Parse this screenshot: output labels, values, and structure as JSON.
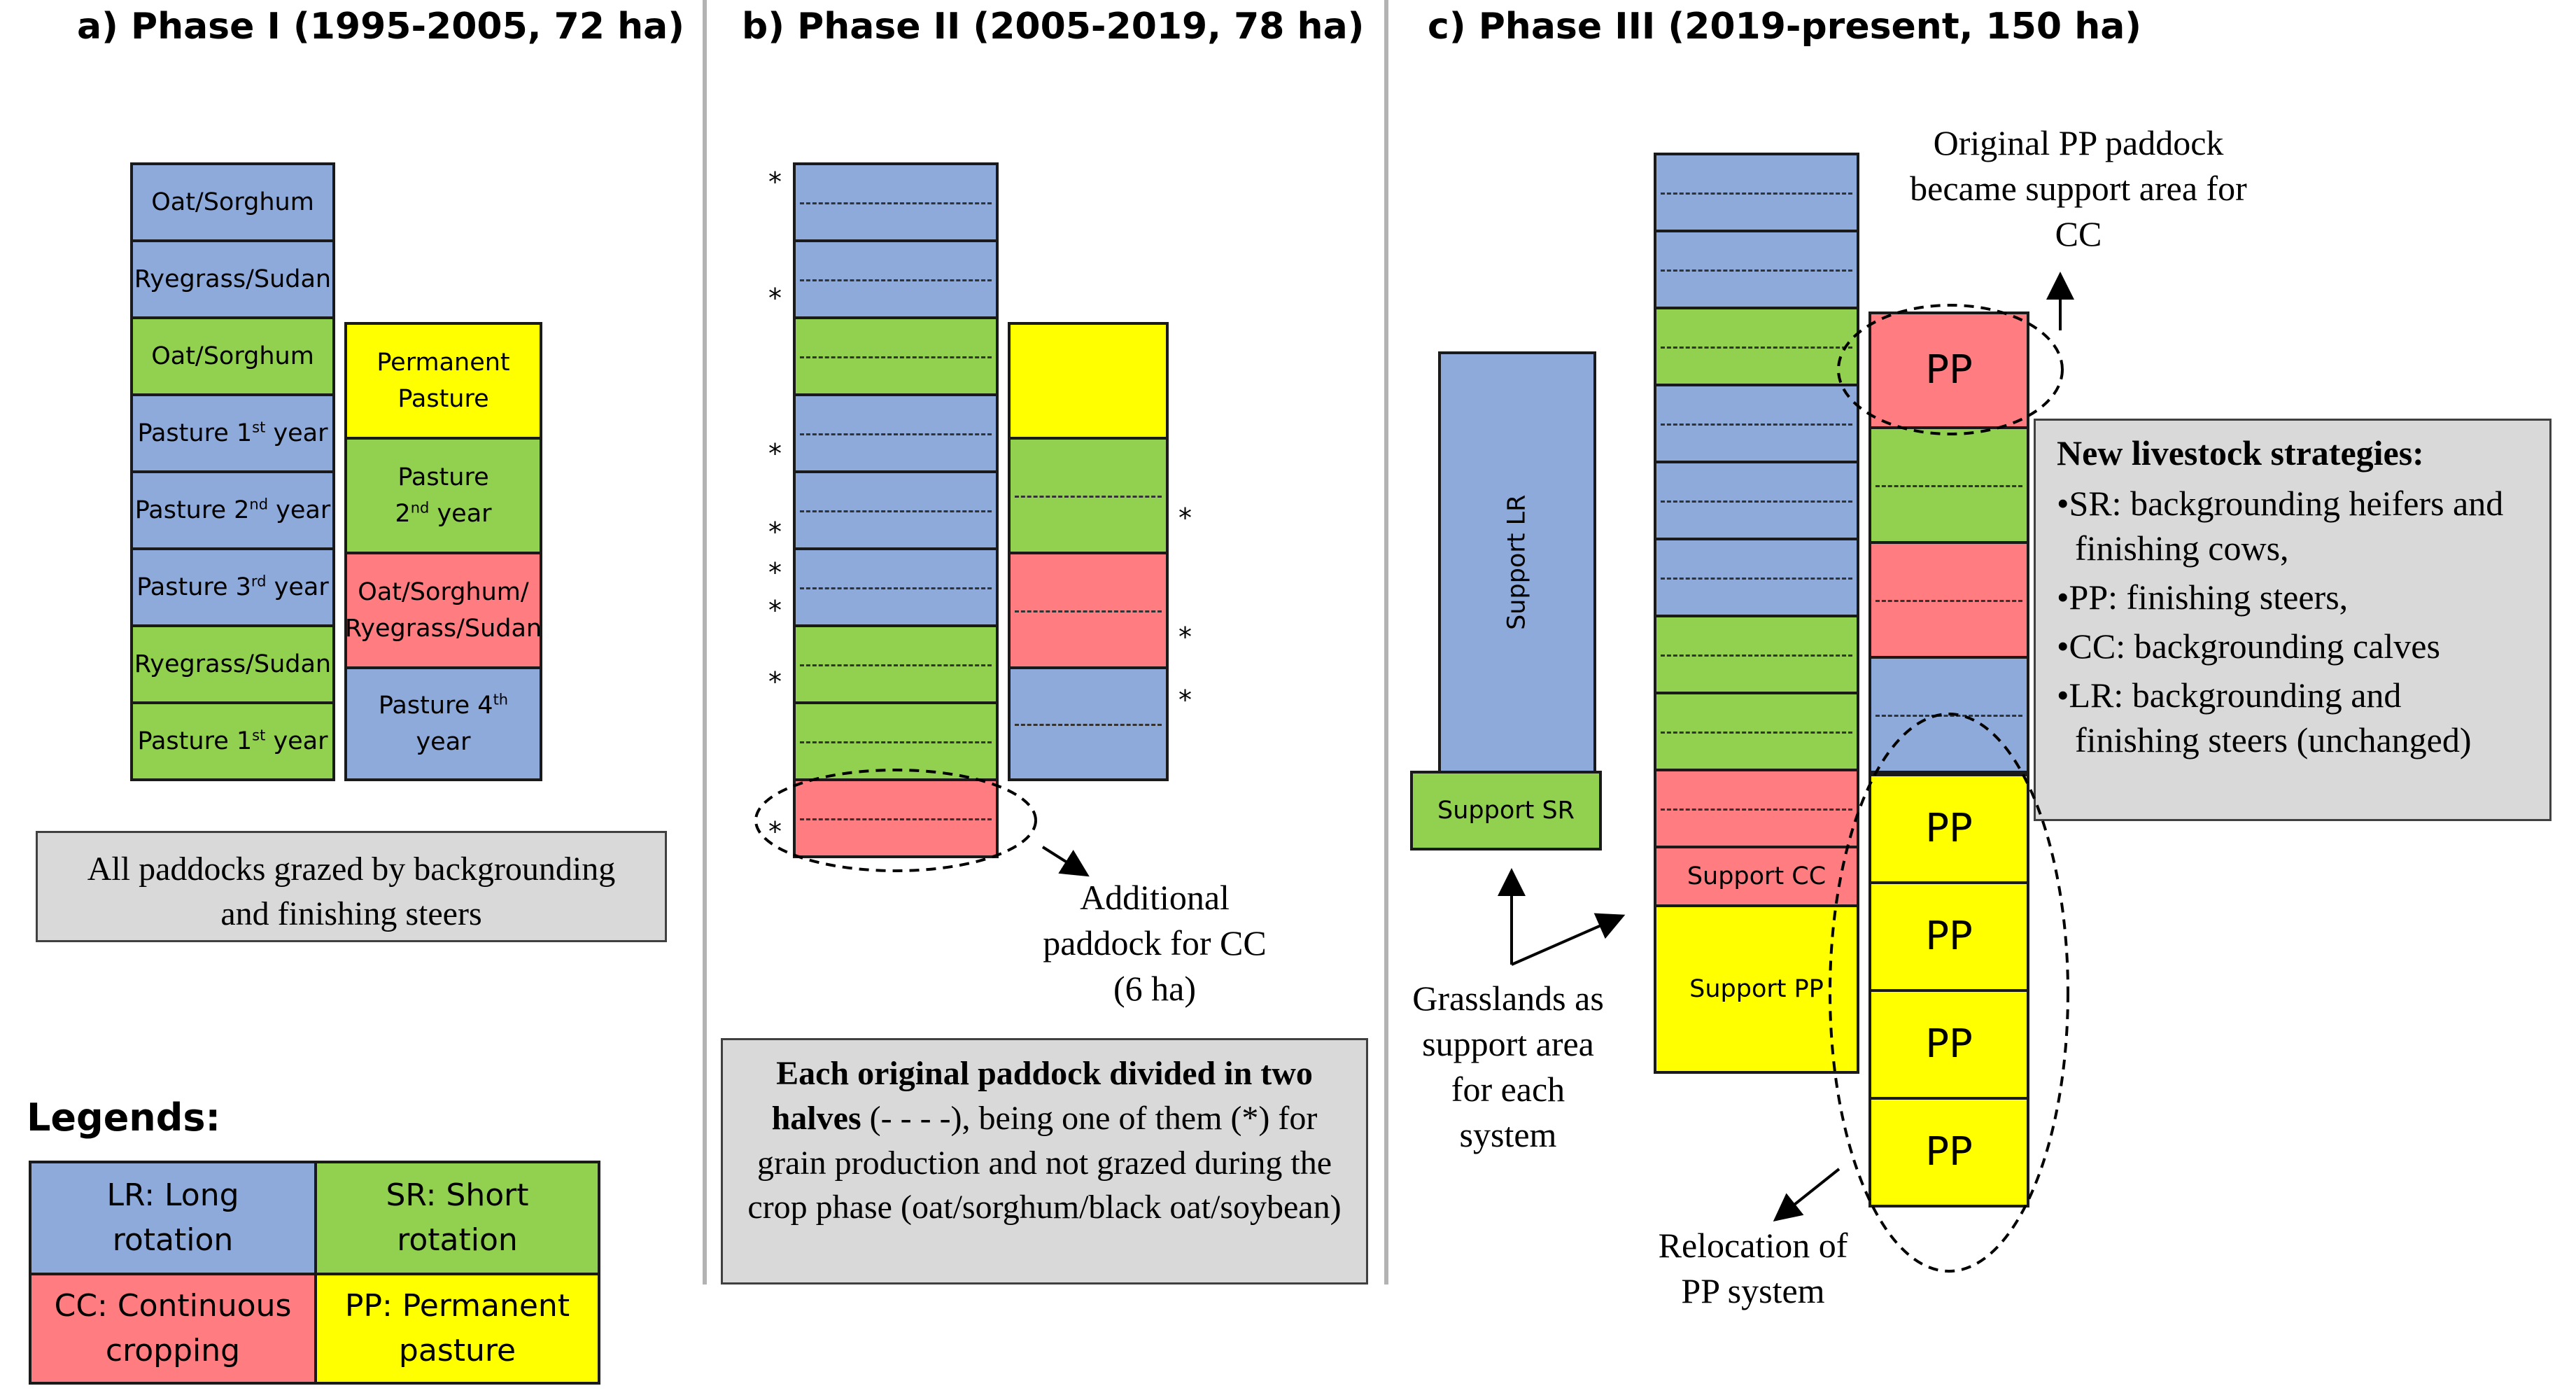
{
  "phase1": {
    "title": "a) Phase I (1995-2005, 72 ha)",
    "left_column": [
      "Oat/Sorghum",
      "Ryegrass/Sudan",
      "Oat/Sorghum",
      "Pasture 1",
      "Pasture 2",
      "Pasture 3",
      "Ryegrass/Sudan",
      "Pasture 1"
    ],
    "left_suffixes": [
      "st",
      " year",
      "nd",
      " year",
      "rd",
      " year",
      "st",
      " year"
    ],
    "right_column": [
      "Permanent Pasture",
      "Pasture",
      "2",
      "nd",
      " year",
      "Oat/Sorghum/ Ryegrass/Sudan",
      "Pasture 4",
      "th",
      "year"
    ],
    "note": "All paddocks grazed by backgrounding and finishing steers"
  },
  "phase2": {
    "title": "b) Phase II (2005-2019, 78 ha)",
    "star": "*",
    "additional_note": "Additional paddock for CC (6 ha)",
    "box": {
      "bold_part": "Each original paddock divided in two halves",
      "rest": " (- - - -), being one of them (*) for grain production and not grazed during the crop phase (oat/sorghum/black oat/soybean)"
    }
  },
  "phase3": {
    "title": "c) Phase III (2019-present, 150 ha)",
    "support_lr": "Support LR",
    "support_sr": "Support SR",
    "support_cc": "Support CC",
    "support_pp": "Support PP",
    "pp_label": "PP",
    "original_pp_note": "Original PP paddock became support area for CC",
    "grasslands_note": "Grasslands as support area for each system",
    "relocation_note": "Relocation of PP system",
    "strategies": {
      "heading": "New livestock strategies:",
      "items": [
        "SR: backgrounding heifers and finishing cows,",
        "PP: finishing steers,",
        "CC: backgrounding calves",
        "LR: backgrounding and finishing steers (unchanged)"
      ]
    }
  },
  "legend": {
    "title": "Legends:",
    "lr": "LR: Long rotation",
    "sr": "SR: Short rotation",
    "cc": "CC: Continuous cropping",
    "pp": "PP: Permanent pasture"
  },
  "colors": {
    "lr": "#8eaadb",
    "sr": "#92d050",
    "cc": "#ff7c80",
    "pp": "#ffff00"
  }
}
